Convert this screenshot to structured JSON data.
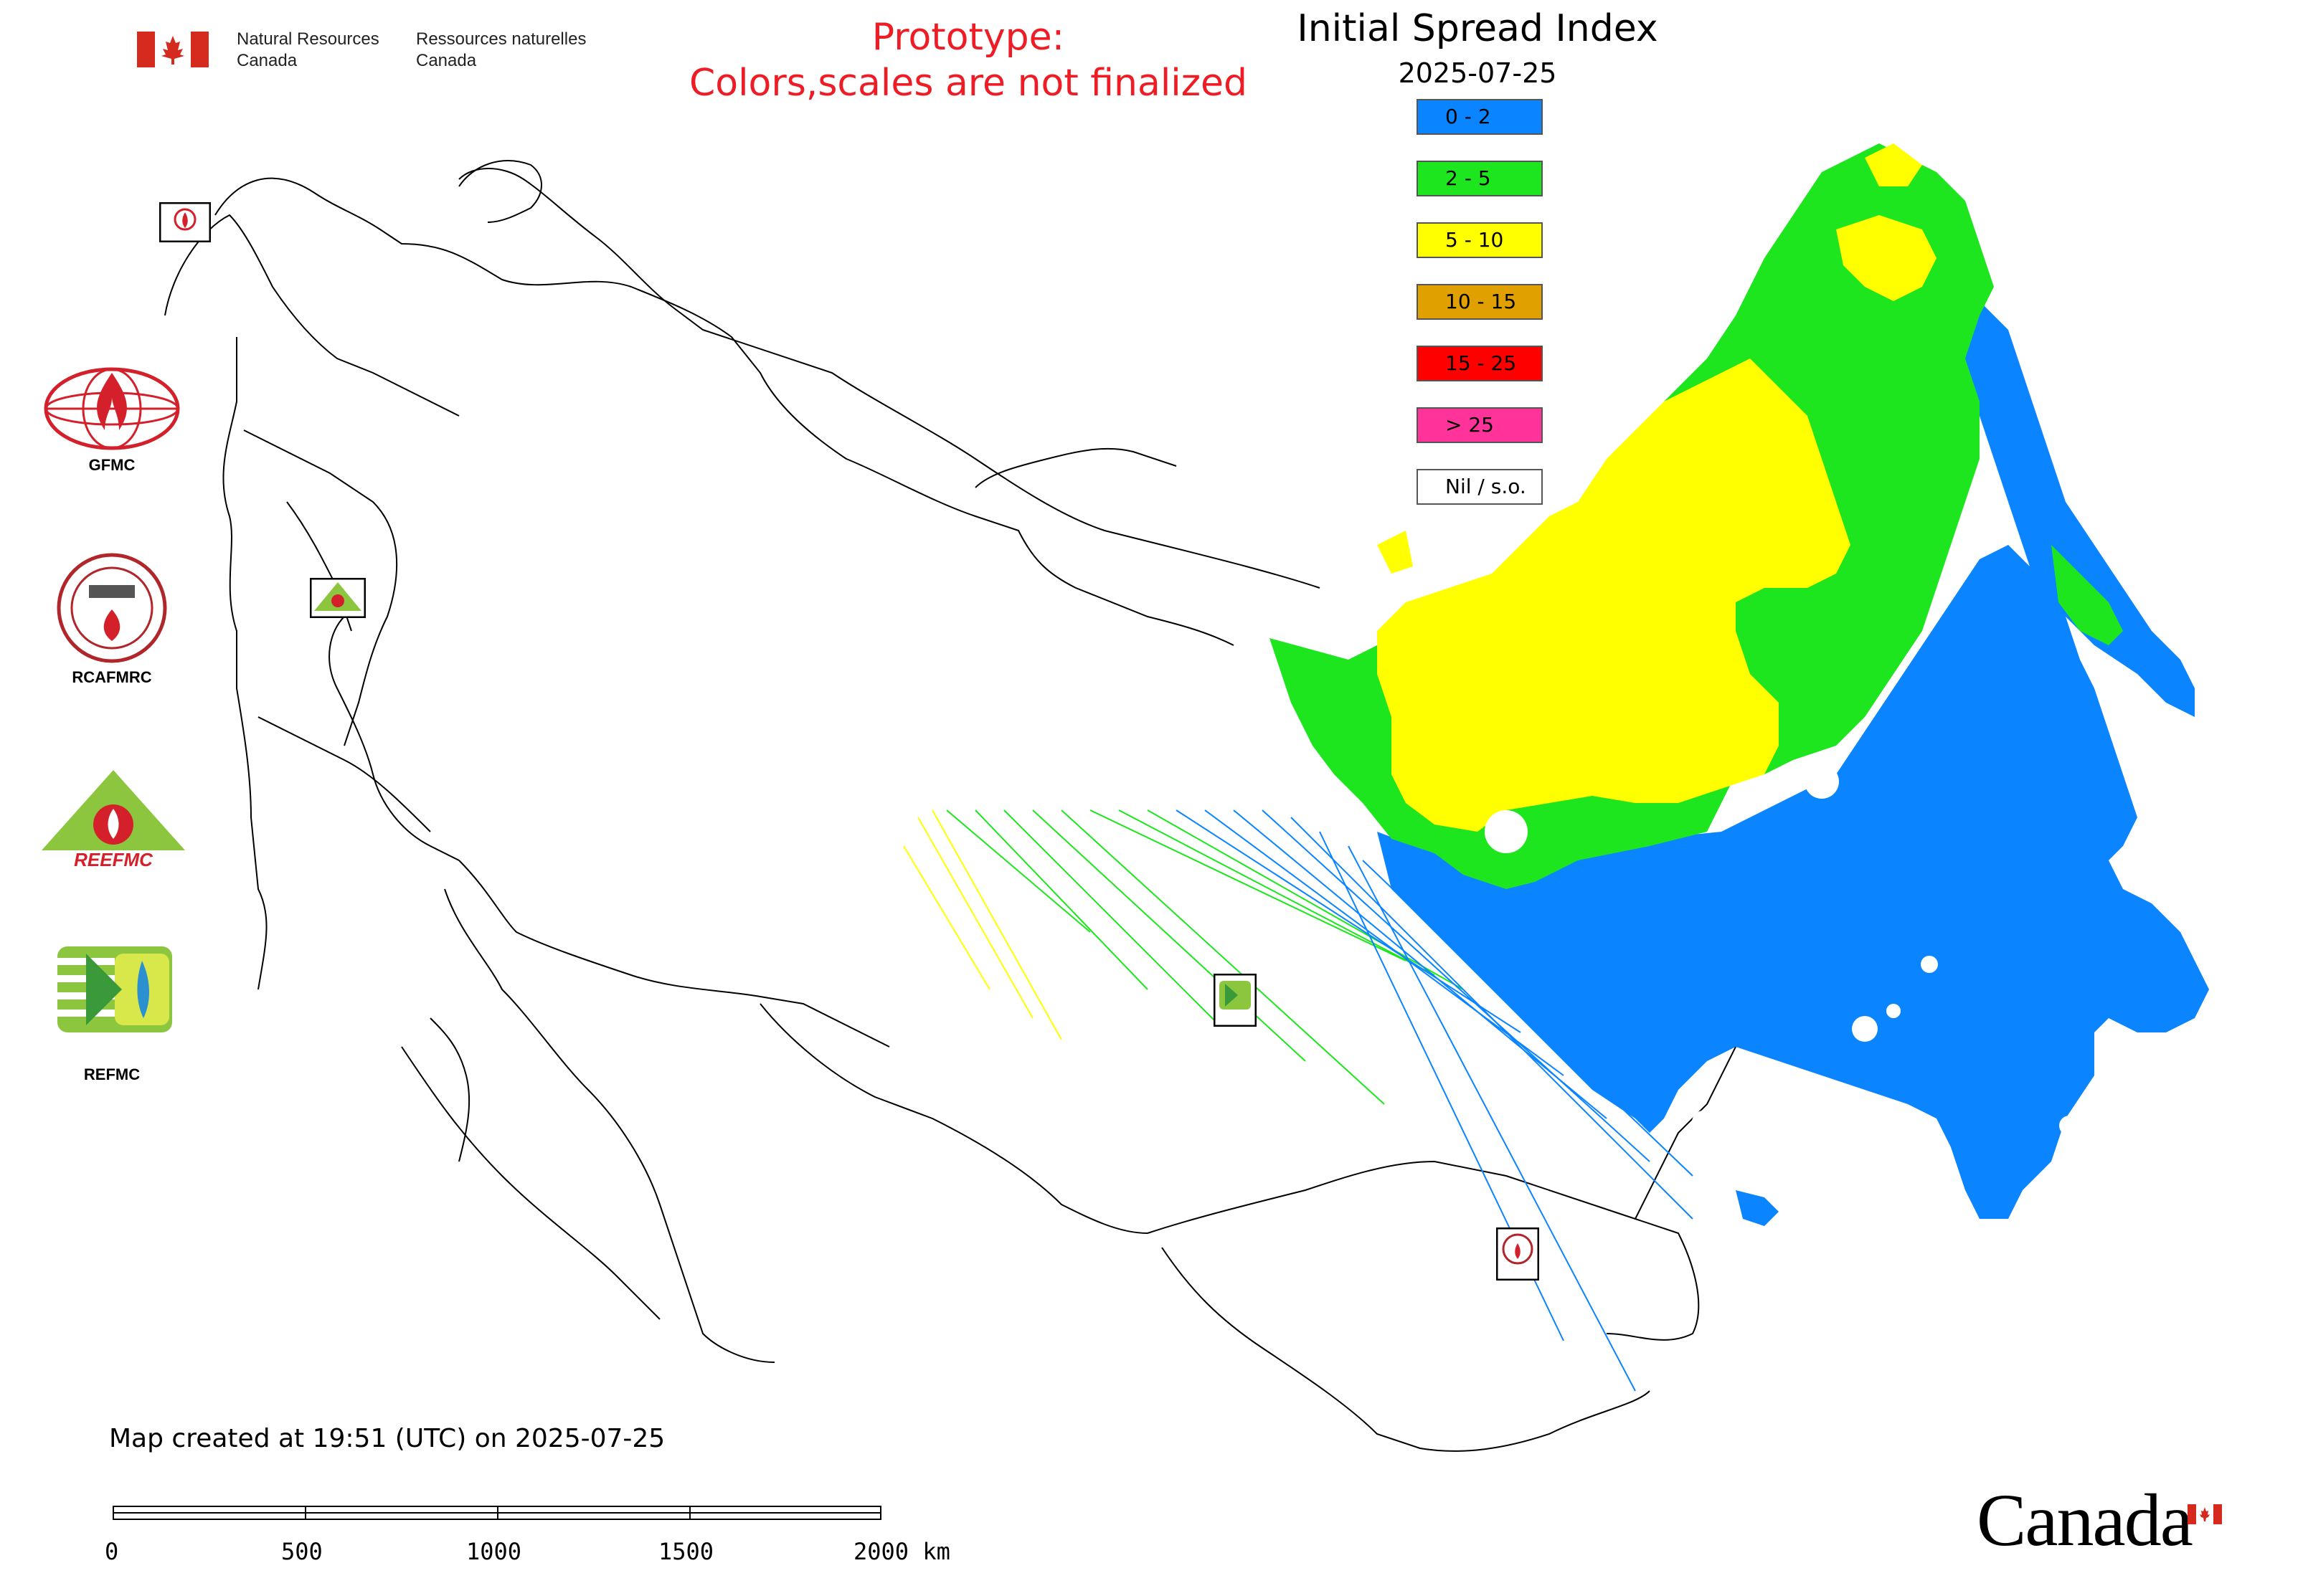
{
  "header": {
    "gov_name_en_line1": "Natural Resources",
    "gov_name_en_line2": "Canada",
    "gov_name_fr_line1": "Ressources naturelles",
    "gov_name_fr_line2": "Canada",
    "notice_line1": "Prototype:",
    "notice_line2": "Colors,scales are not finalized"
  },
  "map": {
    "title": "Initial Spread Index",
    "date": "2025-07-25",
    "created_note": "Map created at 19:51 (UTC) on 2025-07-25"
  },
  "legend": [
    {
      "label": "0 - 2",
      "color": "#0a84ff"
    },
    {
      "label": "2 - 5",
      "color": "#1ee61e"
    },
    {
      "label": "5 - 10",
      "color": "#ffff00"
    },
    {
      "label": "10 - 15",
      "color": "#e0a000"
    },
    {
      "label": "15 - 25",
      "color": "#ff0000"
    },
    {
      "label": "> 25",
      "color": "#ff3399"
    },
    {
      "label": "Nil / s.o.",
      "color": "#ffffff"
    }
  ],
  "logos": {
    "gfmc_label": "GFMC",
    "rcafmrc_label": "RCAFMRC",
    "reefmc_text": "REEFMC",
    "refmc_label": "REFMC"
  },
  "scale_bar": {
    "ticks": [
      "0",
      "500",
      "1000",
      "1500",
      "2000 km"
    ]
  },
  "wordmark": "Canada",
  "colors": {
    "notice_red": "#ee1c25",
    "canada_red": "#d52b1e"
  }
}
